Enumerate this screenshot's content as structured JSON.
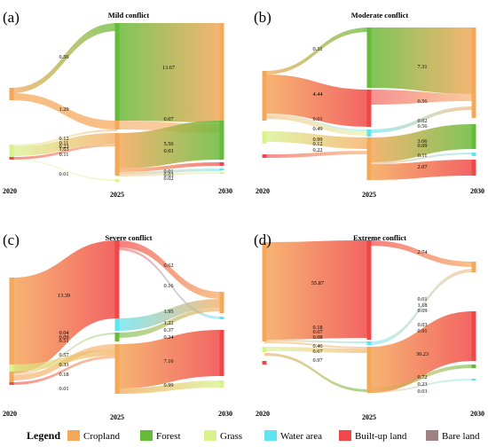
{
  "colors": {
    "cropland": "#F5A85A",
    "forest": "#66BB3A",
    "grass": "#D8F28C",
    "water": "#60E4F0",
    "builtup": "#F04848",
    "bare": "#A08080"
  },
  "legend": {
    "title": "Legend",
    "items": [
      {
        "label": "Cropland",
        "color": "#F5A85A"
      },
      {
        "label": "Forest",
        "color": "#66BB3A"
      },
      {
        "label": "Grass",
        "color": "#D8F28C"
      },
      {
        "label": "Water area",
        "color": "#60E4F0"
      },
      {
        "label": "Built-up land",
        "color": "#F04848"
      },
      {
        "label": "Bare land",
        "color": "#A08080"
      }
    ]
  },
  "panels": [
    {
      "letter": "(a)",
      "title": "Mild conflict",
      "years": [
        "2020",
        "2025",
        "2030"
      ],
      "flows": [
        {
          "from": "cropland",
          "to": "forest",
          "value": "0.56"
        },
        {
          "from": "cropland",
          "to": "cropland",
          "value": "1.29"
        },
        {
          "from": "grass",
          "to": "cropland",
          "value": "0.12"
        },
        {
          "from": "grass",
          "to": "grass",
          "value": "0.11"
        },
        {
          "from": "grass",
          "to": "water",
          "value": "0.23"
        },
        {
          "from": "grass",
          "to": "forest",
          "value": "1.63"
        },
        {
          "from": "builtup",
          "to": "cropland",
          "value": "0.11"
        },
        {
          "from": "bare",
          "to": "grass",
          "value": "0.01"
        },
        {
          "from": "forest",
          "to": "cropland",
          "value": "13.67"
        },
        {
          "from": "cropland",
          "to": "cropland",
          "value": "0.07"
        },
        {
          "from": "cropland",
          "to": "forest",
          "value": "5.56"
        },
        {
          "from": "cropland",
          "to": "cropland",
          "value": "0.03"
        },
        {
          "from": "cropland",
          "to": "builtup",
          "value": "0.01"
        },
        {
          "from": "cropland",
          "to": "water",
          "value": "0.03"
        },
        {
          "from": "cropland",
          "to": "bare",
          "value": "0.02"
        }
      ]
    },
    {
      "letter": "(b)",
      "title": "Moderate conflict",
      "years": [
        "2020",
        "2025",
        "2030"
      ],
      "flows": [
        {
          "from": "cropland",
          "to": "forest",
          "value": "0.31"
        },
        {
          "from": "cropland",
          "to": "builtup",
          "value": "4.44"
        },
        {
          "from": "cropland",
          "to": "water",
          "value": "0.01"
        },
        {
          "from": "cropland",
          "to": "grass",
          "value": "0.49"
        },
        {
          "from": "grass",
          "to": "cropland",
          "value": "0.99"
        },
        {
          "from": "grass",
          "to": "cropland",
          "value": "0.12"
        },
        {
          "from": "builtup",
          "to": "cropland",
          "value": "0.22"
        },
        {
          "from": "forest",
          "to": "cropland",
          "value": "7.31"
        },
        {
          "from": "builtup",
          "to": "cropland",
          "value": "0.56"
        },
        {
          "from": "water",
          "to": "cropland",
          "value": "0.02"
        },
        {
          "from": "water",
          "to": "cropland",
          "value": "0.56"
        },
        {
          "from": "cropland",
          "to": "forest",
          "value": "3.06"
        },
        {
          "from": "cropland",
          "to": "cropland",
          "value": "0.09"
        },
        {
          "from": "cropland",
          "to": "water",
          "value": "0.11"
        },
        {
          "from": "cropland",
          "to": "builtup",
          "value": "2.07"
        }
      ]
    },
    {
      "letter": "(c)",
      "title": "Severe conflict",
      "years": [
        "2020",
        "2025",
        "2030"
      ],
      "flows": [
        {
          "from": "cropland",
          "to": "builtup",
          "value": "13.39"
        },
        {
          "from": "cropland",
          "to": "cropland",
          "value": "0.04"
        },
        {
          "from": "cropland",
          "to": "grass",
          "value": "0.09"
        },
        {
          "from": "cropland",
          "to": "forest",
          "value": "0.51"
        },
        {
          "from": "grass",
          "to": "cropland",
          "value": "0.57"
        },
        {
          "from": "grass",
          "to": "cropland",
          "value": "0.33"
        },
        {
          "from": "builtup",
          "to": "cropland",
          "value": "0.18"
        },
        {
          "from": "bare",
          "to": "cropland",
          "value": "0.01"
        },
        {
          "from": "builtup",
          "to": "cropland",
          "value": "0.62"
        },
        {
          "from": "builtup",
          "to": "water",
          "value": "0.16"
        },
        {
          "from": "water",
          "to": "cropland",
          "value": "1.95"
        },
        {
          "from": "water",
          "to": "cropland",
          "value": "1.22"
        },
        {
          "from": "forest",
          "to": "cropland",
          "value": "0.37"
        },
        {
          "from": "grass",
          "to": "cropland",
          "value": "0.24"
        },
        {
          "from": "cropland",
          "to": "builtup",
          "value": "7.16"
        },
        {
          "from": "cropland",
          "to": "grass",
          "value": "0.99"
        }
      ]
    },
    {
      "letter": "(d)",
      "title": "Extreme conflict",
      "years": [
        "2020",
        "2025",
        "2030"
      ],
      "flows": [
        {
          "from": "cropland",
          "to": "builtup",
          "value": "55.87"
        },
        {
          "from": "cropland",
          "to": "water",
          "value": "0.18"
        },
        {
          "from": "cropland",
          "to": "cropland",
          "value": "0.07"
        },
        {
          "from": "cropland",
          "to": "cropland",
          "value": "0.08"
        },
        {
          "from": "grass",
          "to": "cropland",
          "value": "0.46"
        },
        {
          "from": "grass",
          "to": "cropland",
          "value": "0.67"
        },
        {
          "from": "cropland",
          "to": "forest",
          "value": "0.97"
        },
        {
          "from": "builtup",
          "to": "cropland",
          "value": "2.74"
        },
        {
          "from": "water",
          "to": "cropland",
          "value": "0.01"
        },
        {
          "from": "water",
          "to": "cropland",
          "value": "1.18"
        },
        {
          "from": "water",
          "to": "cropland",
          "value": "0.09"
        },
        {
          "from": "cropland",
          "to": "builtup",
          "value": "0.03"
        },
        {
          "from": "cropland",
          "to": "builtup",
          "value": "0.91"
        },
        {
          "from": "cropland",
          "to": "builtup",
          "value": "30.23"
        },
        {
          "from": "cropland",
          "to": "forest",
          "value": "0.72"
        },
        {
          "from": "cropland",
          "to": "water",
          "value": "0.23"
        },
        {
          "from": "cropland",
          "to": "water",
          "value": "0.03"
        }
      ]
    }
  ]
}
